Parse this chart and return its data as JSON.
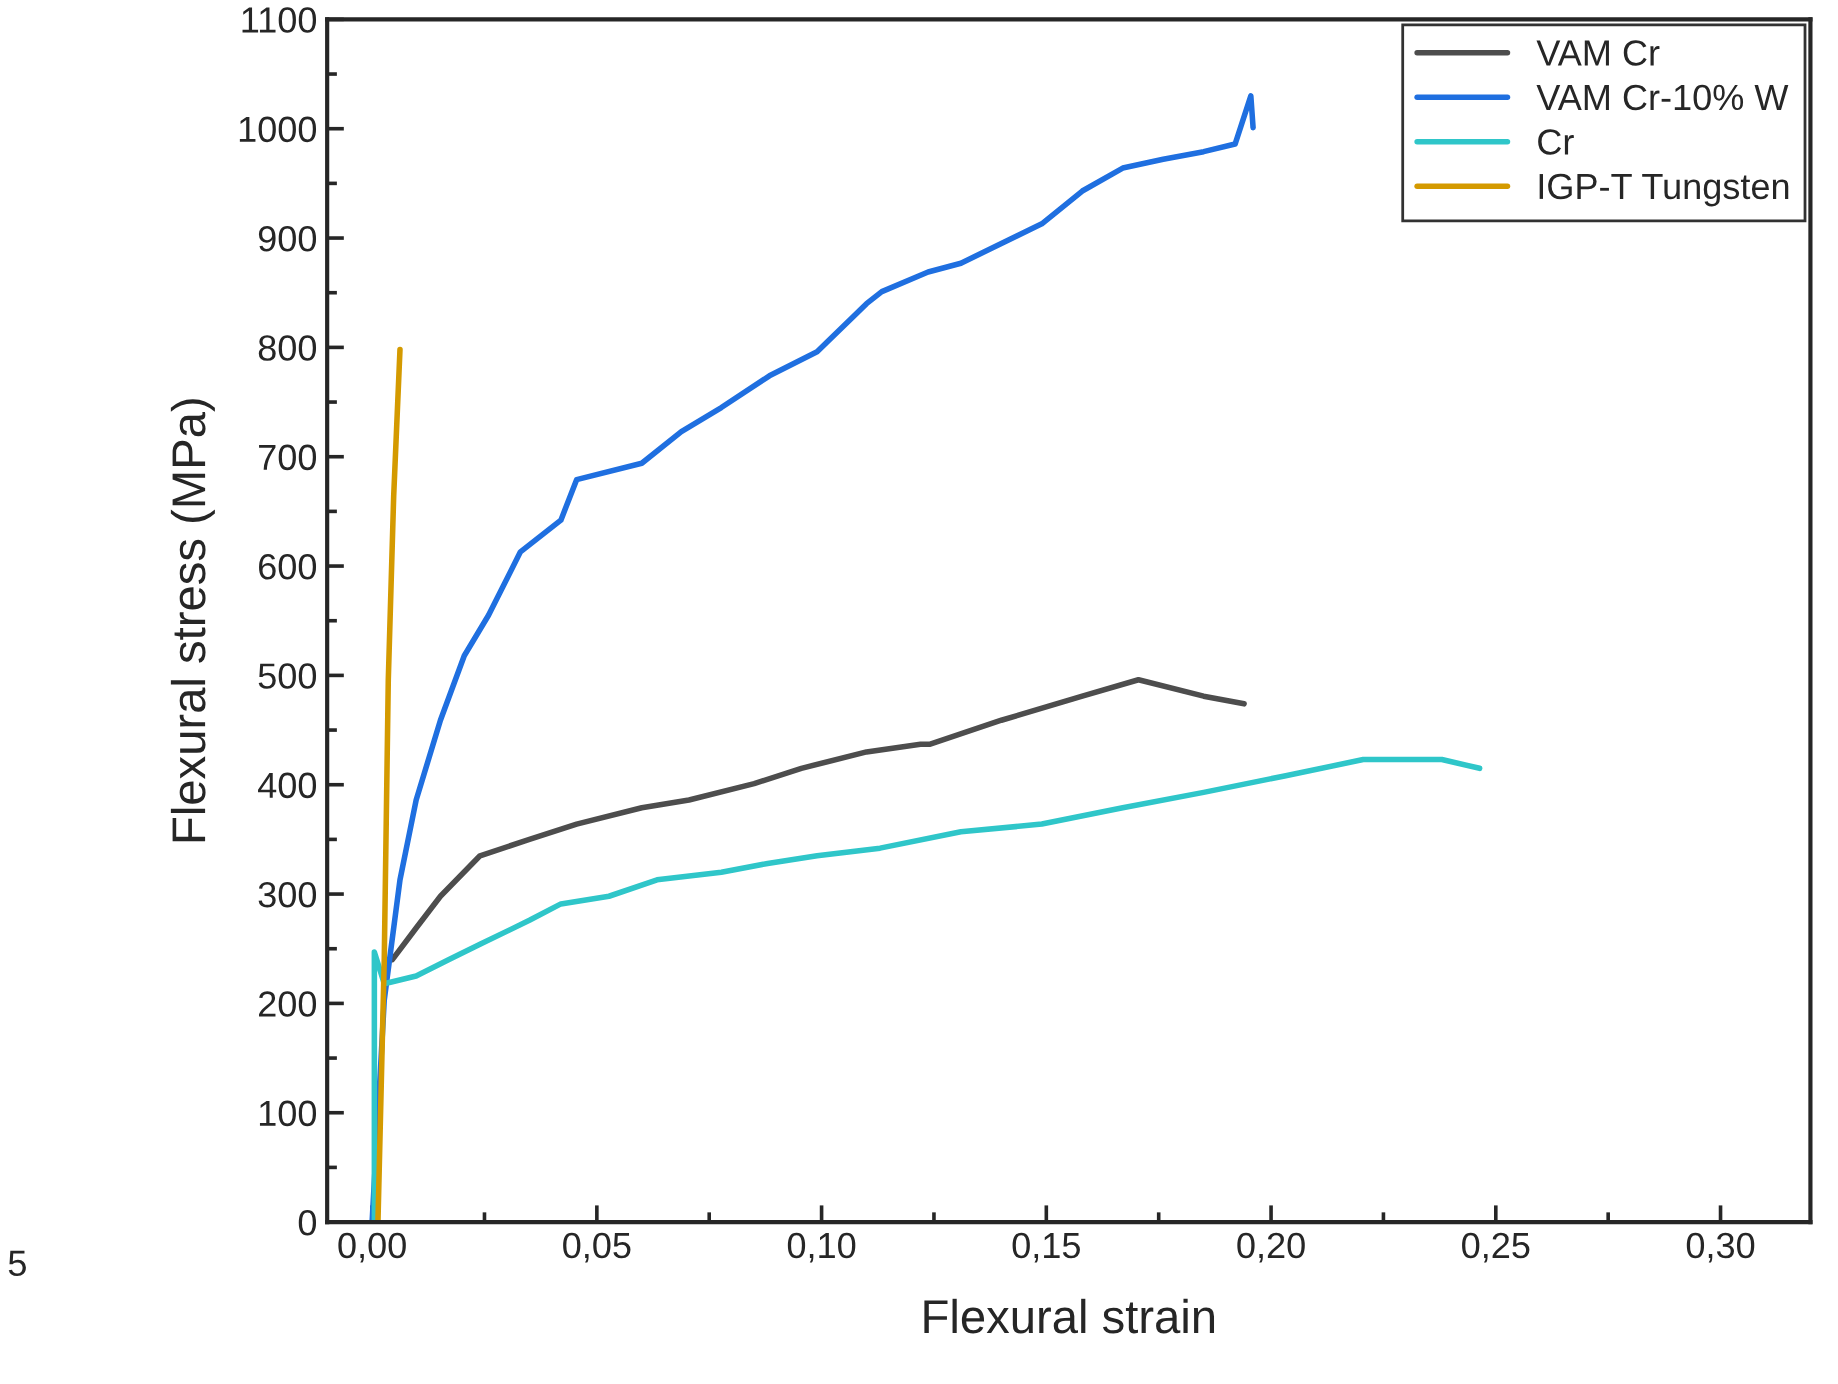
{
  "chart_data": {
    "type": "line",
    "xlabel": "Flexural strain",
    "ylabel": "Flexural stress (MPa)",
    "xlim": [
      -0.01,
      0.32
    ],
    "ylim": [
      0,
      1100
    ],
    "xticks": [
      {
        "value": 0.0,
        "label": "0,00"
      },
      {
        "value": 0.05,
        "label": "0,05"
      },
      {
        "value": 0.1,
        "label": "0,10"
      },
      {
        "value": 0.15,
        "label": "0,15"
      },
      {
        "value": 0.2,
        "label": "0,20"
      },
      {
        "value": 0.25,
        "label": "0,25"
      },
      {
        "value": 0.3,
        "label": "0,30"
      }
    ],
    "yticks": [
      0,
      100,
      200,
      300,
      400,
      500,
      600,
      700,
      800,
      900,
      1000,
      1100
    ],
    "legend": "top right",
    "grid": false,
    "line_style": "solid",
    "marker": "none",
    "annotations": [
      "5"
    ],
    "series": [
      {
        "name": "VAM Cr",
        "color": "#4d4d4d",
        "x": [
          0.0045,
          0.0098,
          0.0152,
          0.024,
          0.035,
          0.0455,
          0.06,
          0.0705,
          0.085,
          0.0955,
          0.11,
          0.122,
          0.124,
          0.14,
          0.158,
          0.1705,
          0.185,
          0.194
        ],
        "values": [
          240,
          269,
          298,
          335,
          350,
          364,
          379,
          386,
          401,
          415,
          430,
          437,
          437,
          459,
          481,
          496,
          481,
          474
        ]
      },
      {
        "name": "VAM Cr-10% W",
        "color": "#1f6fe0",
        "x": [
          0.0,
          0.0027,
          0.0062,
          0.0098,
          0.0152,
          0.0205,
          0.0259,
          0.033,
          0.042,
          0.0455,
          0.06,
          0.0688,
          0.0777,
          0.0884,
          0.099,
          0.11,
          0.1134,
          0.1237,
          0.131,
          0.149,
          0.158,
          0.167,
          0.176,
          0.185,
          0.192,
          0.1955,
          0.196
        ],
        "values": [
          0,
          203,
          313,
          386,
          459,
          518,
          555,
          613,
          642,
          679,
          694,
          723,
          745,
          774,
          796,
          840,
          851,
          869,
          877,
          913,
          943,
          964,
          972,
          979,
          986,
          1030,
          1001
        ]
      },
      {
        "name": "Cr",
        "color": "#2fc6c9",
        "x": [
          0.0005,
          0.0005,
          0.0027,
          0.0098,
          0.017,
          0.024,
          0.035,
          0.042,
          0.0527,
          0.0634,
          0.0777,
          0.088,
          0.099,
          0.113,
          0.131,
          0.149,
          0.167,
          0.185,
          0.203,
          0.2205,
          0.238,
          0.2464
        ],
        "values": [
          0,
          247,
          218,
          225,
          240,
          254,
          276,
          291,
          298,
          313,
          320,
          328,
          335,
          342,
          357,
          364,
          379,
          393,
          408,
          423,
          423,
          415
        ]
      },
      {
        "name": "IGP-T Tungsten",
        "color": "#d49a00",
        "x": [
          0.0013,
          0.0027,
          0.0036,
          0.0048,
          0.0062
        ],
        "values": [
          0,
          240,
          496,
          664,
          798
        ]
      }
    ]
  }
}
